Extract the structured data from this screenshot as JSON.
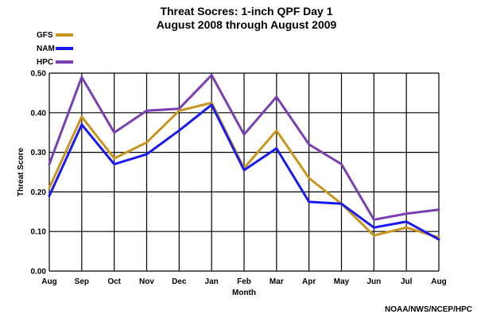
{
  "chart_data": {
    "type": "line",
    "title": "Threat Socres: 1-inch QPF Day 1",
    "subtitle": "August 2008 through August 2009",
    "xlabel": "Month",
    "ylabel": "Threat Score",
    "categories": [
      "Aug",
      "Sep",
      "Oct",
      "Nov",
      "Dec",
      "Jan",
      "Feb",
      "Mar",
      "Apr",
      "May",
      "Jun",
      "Jul",
      "Aug"
    ],
    "ylim": [
      0,
      0.5
    ],
    "yticks": [
      "0.00",
      "0.10",
      "0.20",
      "0.30",
      "0.40",
      "0.50"
    ],
    "grid": true,
    "legend_position": "top-left",
    "series": [
      {
        "name": "GFS",
        "color": "#c8961e",
        "values": [
          0.21,
          0.39,
          0.285,
          0.325,
          0.405,
          0.425,
          0.26,
          0.355,
          0.235,
          0.17,
          0.09,
          0.11,
          0.085
        ]
      },
      {
        "name": "NAM",
        "color": "#1a1af0",
        "values": [
          0.19,
          0.37,
          0.27,
          0.295,
          0.355,
          0.42,
          0.255,
          0.31,
          0.175,
          0.17,
          0.11,
          0.125,
          0.08
        ]
      },
      {
        "name": "HPC",
        "color": "#7a3fb0",
        "values": [
          0.27,
          0.49,
          0.35,
          0.405,
          0.41,
          0.495,
          0.345,
          0.44,
          0.32,
          0.27,
          0.13,
          0.145,
          0.155
        ]
      }
    ]
  },
  "footer": {
    "credit": "NOAA/NWS/NCEP/HPC"
  }
}
